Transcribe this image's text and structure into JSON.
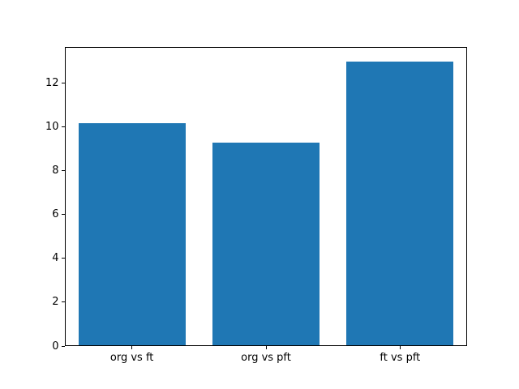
{
  "chart_data": {
    "type": "bar",
    "categories": [
      "org vs ft",
      "org vs pft",
      "ft vs pft"
    ],
    "values": [
      10.2,
      9.3,
      13.0
    ],
    "yticks": [
      0,
      2,
      4,
      6,
      8,
      10,
      12
    ],
    "ylim": [
      0,
      13.65
    ],
    "bar_width_fraction": 0.8,
    "grid": false,
    "legend_position": "none",
    "bar_color": "#1f77b4"
  },
  "colors": {
    "background": "#ffffff",
    "spine": "#000000",
    "tick_text": "#000000",
    "bar": "#1f77b4"
  }
}
